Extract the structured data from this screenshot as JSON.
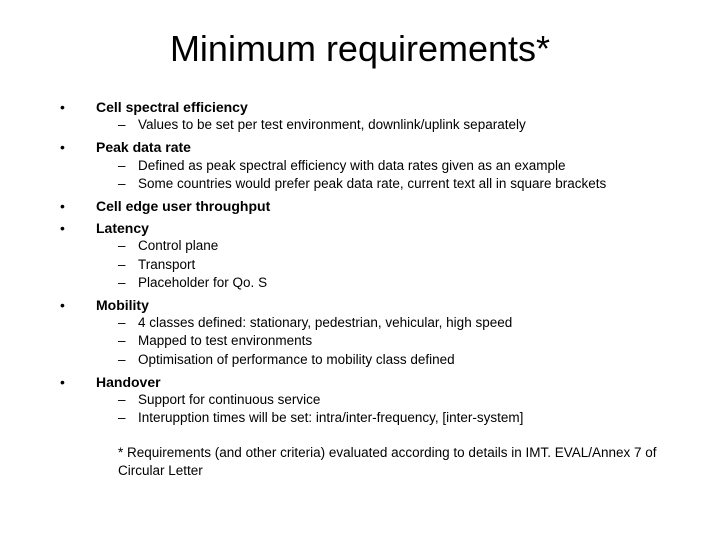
{
  "title": "Minimum requirements*",
  "items": [
    {
      "label": "Cell spectral efficiency",
      "subs": [
        "Values to be set per test environment, downlink/uplink separately"
      ]
    },
    {
      "label": "Peak data rate",
      "subs": [
        "Defined as peak spectral efficiency with data rates given as an example",
        "Some countries would prefer peak data rate, current text all in square brackets"
      ]
    },
    {
      "label": "Cell edge user throughput",
      "subs": []
    },
    {
      "label": "Latency",
      "subs": [
        "Control plane",
        "Transport",
        "Placeholder for Qo. S"
      ]
    },
    {
      "label": "Mobility",
      "subs": [
        "4 classes defined: stationary, pedestrian, vehicular, high speed",
        "Mapped to test environments",
        "Optimisation of performance to mobility class defined"
      ]
    },
    {
      "label": "Handover",
      "subs": [
        "Support for continuous service",
        "Interupption times will be set: intra/inter-frequency, [inter-system]"
      ]
    }
  ],
  "footnote": "* Requirements (and other criteria) evaluated according to details in IMT. EVAL/Annex 7 of Circular Letter"
}
